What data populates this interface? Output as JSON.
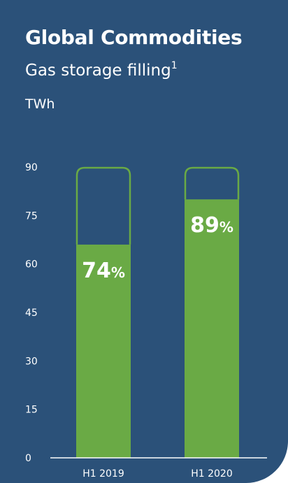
{
  "header": {
    "title": "Global Commodities",
    "subtitle": "Gas storage filling",
    "footnote_marker": "1",
    "unit": "TWh"
  },
  "colors": {
    "background": "#2b5179",
    "bar_fill": "#6aaa45",
    "capacity_outline": "#6aaa45",
    "axis": "#ffffff",
    "text": "#ffffff"
  },
  "chart_data": {
    "type": "bar",
    "categories": [
      "H1 2019",
      "H1 2020"
    ],
    "values": [
      66,
      80
    ],
    "capacity": [
      90,
      90
    ],
    "data_labels": [
      {
        "value": "74",
        "suffix": "%"
      },
      {
        "value": "89",
        "suffix": "%"
      }
    ],
    "ylim": [
      0,
      90
    ],
    "yticks": [
      0,
      15,
      30,
      45,
      60,
      75,
      90
    ],
    "ylabel": "TWh",
    "grid": false,
    "legend": "none"
  }
}
